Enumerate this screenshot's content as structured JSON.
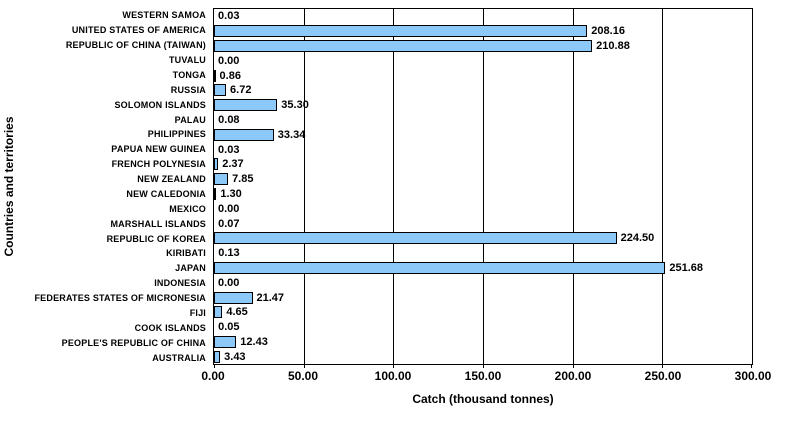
{
  "chart_data": {
    "type": "bar",
    "orientation": "horizontal",
    "title": "",
    "xlabel": "Catch (thousand tonnes)",
    "ylabel": "Countries and territories",
    "xlim": [
      0,
      300
    ],
    "xticks": [
      "0.00",
      "50.00",
      "100.00",
      "150.00",
      "200.00",
      "250.00",
      "300.00"
    ],
    "xtick_values": [
      0,
      50,
      100,
      150,
      200,
      250,
      300
    ],
    "grid": true,
    "legend": false,
    "bar_color": "#8CC9F9",
    "bar_border_color": "#000000",
    "categories": [
      "WESTERN SAMOA",
      "UNITED STATES OF AMERICA",
      "REPUBLIC OF CHINA (TAIWAN)",
      "TUVALU",
      "TONGA",
      "RUSSIA",
      "SOLOMON ISLANDS",
      "PALAU",
      "PHILIPPINES",
      "PAPUA NEW GUINEA",
      "FRENCH POLYNESIA",
      "NEW ZEALAND",
      "NEW CALEDONIA",
      "MEXICO",
      "MARSHALL ISLANDS",
      "REPUBLIC OF KOREA",
      "KIRIBATI",
      "JAPAN",
      "INDONESIA",
      "FEDERATES STATES OF MICRONESIA",
      "FIJI",
      "COOK ISLANDS",
      "PEOPLE'S REPUBLIC OF CHINA",
      "AUSTRALIA"
    ],
    "values": [
      0.03,
      208.16,
      210.88,
      0.0,
      0.86,
      6.72,
      35.3,
      0.08,
      33.34,
      0.03,
      2.37,
      7.85,
      1.3,
      0.0,
      0.07,
      224.5,
      0.13,
      251.68,
      0.0,
      21.47,
      4.65,
      0.05,
      12.43,
      3.43
    ]
  }
}
